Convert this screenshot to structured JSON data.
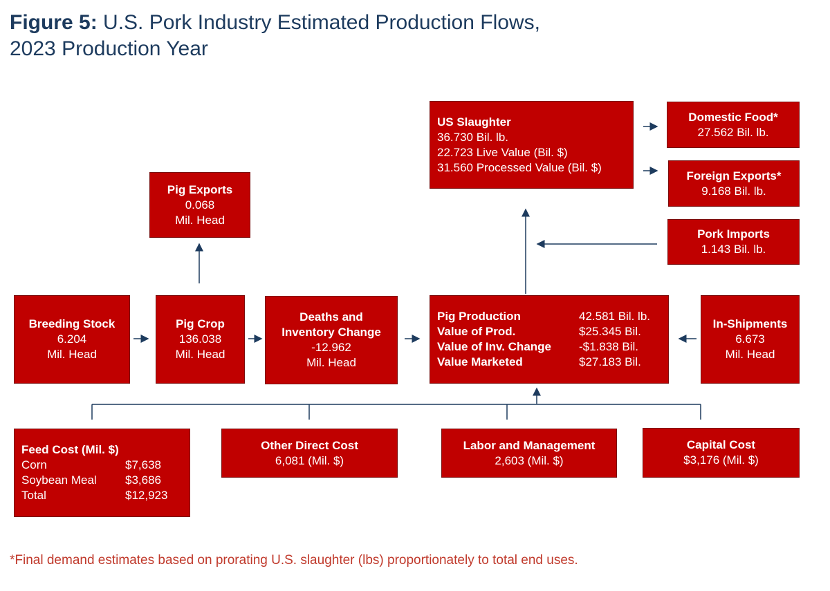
{
  "header": {
    "label": "Figure 5:",
    "lines": [
      "U.S. Pork Industry Estimated Production Flows,",
      "2023 Production Year"
    ]
  },
  "nodes": [
    {
      "title": "US Slaughter",
      "lines": [
        "36.730 Bil. lb.",
        "22.723 Live Value (Bil. $)",
        "31.560 Processed Value (Bil. $)"
      ]
    },
    {
      "title": "Domestic Food*",
      "lines": [
        "27.562 Bil. lb."
      ]
    },
    {
      "title": "Foreign Exports*",
      "lines": [
        "9.168 Bil. lb."
      ]
    },
    {
      "title": "Pork Imports",
      "lines": [
        "1.143 Bil. lb."
      ]
    },
    {
      "title": "Pig Exports",
      "lines": [
        "0.068",
        "Mil. Head"
      ]
    },
    {
      "title": "Breeding Stock",
      "lines": [
        "6.204",
        "Mil. Head"
      ]
    },
    {
      "title": "Pig Crop",
      "lines": [
        "136.038",
        "Mil. Head"
      ]
    },
    {
      "title": "Deaths and Inventory Change",
      "lines": [
        "-12.962",
        "Mil. Head"
      ]
    },
    {
      "rows": [
        [
          "Pig Production",
          "42.581 Bil. lb."
        ],
        [
          "Value of Prod.",
          "$25.345 Bil."
        ],
        [
          "Value of Inv. Change",
          "-$1.838 Bil."
        ],
        [
          "Value Marketed",
          "$27.183 Bil."
        ]
      ]
    },
    {
      "title": "In-Shipments",
      "lines": [
        "6.673",
        "Mil. Head"
      ]
    },
    {
      "title": "Feed Cost (Mil. $)",
      "rows": [
        [
          "Corn",
          "$7,638"
        ],
        [
          "Soybean Meal",
          "$3,686"
        ],
        [
          "Total",
          "$12,923"
        ]
      ]
    },
    {
      "title": "Other Direct Cost",
      "lines": [
        "6,081 (Mil. $)"
      ]
    },
    {
      "title": "Labor and Management",
      "lines": [
        "2,603 (Mil. $)"
      ]
    },
    {
      "title": "Capital Cost",
      "lines": [
        "$3,176 (Mil. $)"
      ]
    }
  ],
  "footnote": "*Final demand estimates based on prorating U.S. slaughter (lbs) proportionately to total end uses."
}
